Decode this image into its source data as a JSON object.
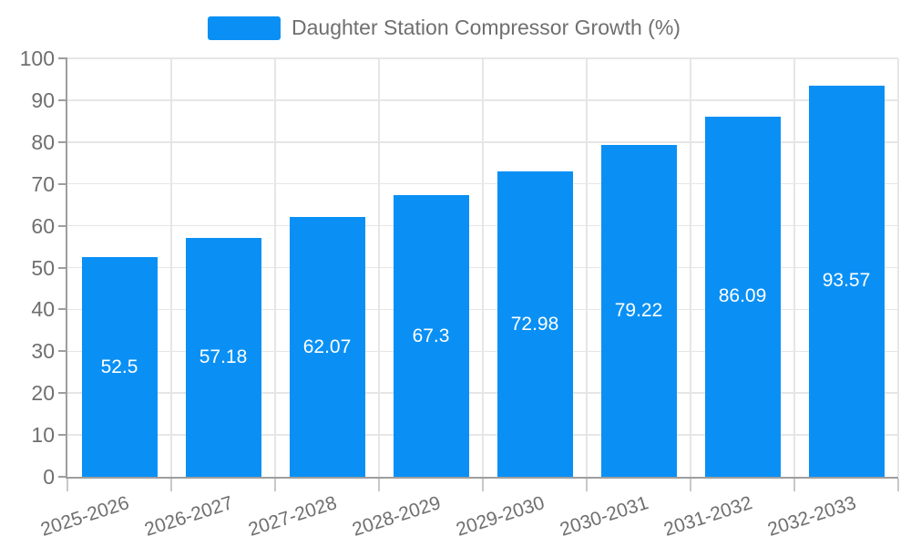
{
  "chart_data": {
    "type": "bar",
    "title": "",
    "legend_label": "Daughter Station Compressor Growth (%)",
    "legend_position": "top-center",
    "categories": [
      "2025-2026",
      "2026-2027",
      "2027-2028",
      "2028-2029",
      "2029-2030",
      "2030-2031",
      "2031-2032",
      "2032-2033"
    ],
    "values": [
      52.5,
      57.18,
      62.07,
      67.3,
      72.98,
      79.22,
      86.09,
      93.57
    ],
    "xlabel": "",
    "ylabel": "",
    "ylim": [
      0,
      100
    ],
    "ytick_step": 10,
    "ytick_labels": [
      "0",
      "10",
      "20",
      "30",
      "40",
      "50",
      "60",
      "70",
      "80",
      "90",
      "100"
    ],
    "grid": true,
    "colors": {
      "bar": "#0a90f5",
      "bar_label": "#ffffff",
      "axis_label": "#6f6f6f",
      "legend_text": "#6f6f6f",
      "axis_line": "#9e9e9e",
      "gridline": "#e6e6e6",
      "x_tick": "#c8c8c8",
      "background": "#ffffff"
    }
  }
}
